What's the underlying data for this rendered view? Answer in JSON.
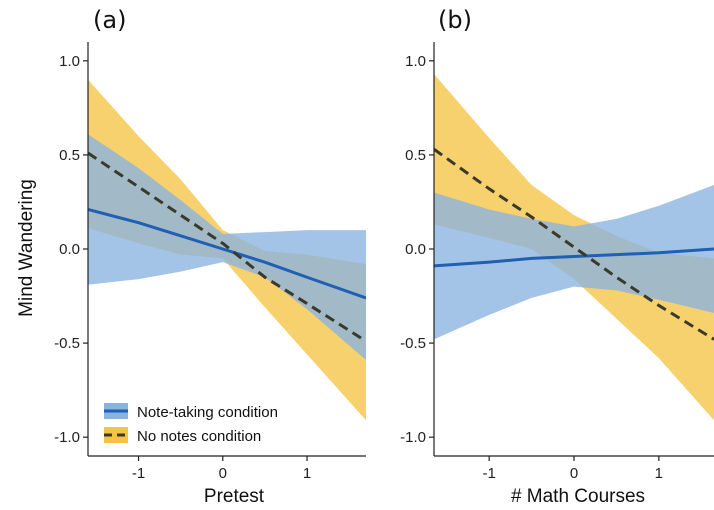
{
  "chart_data": [
    {
      "type": "line",
      "panel_label": "(a)",
      "xlabel": "Pretest",
      "ylabel": "Mind Wandering",
      "xlim": [
        -1.6,
        1.7
      ],
      "ylim": [
        -1.1,
        1.1
      ],
      "x_ticks": [
        "-1",
        "0",
        "1"
      ],
      "y_ticks": [
        "1.0",
        "0.5",
        "0.0",
        "-0.5",
        "-1.0"
      ],
      "grid": false,
      "legend_position": "bottom-left",
      "series": [
        {
          "name": "Note-taking condition",
          "color": "#1f5fb4",
          "band_color": "#8ab4e0",
          "line_style": "solid",
          "x": [
            -1.6,
            -1.0,
            -0.5,
            0.0,
            0.5,
            1.0,
            1.7
          ],
          "values": [
            0.21,
            0.14,
            0.07,
            0.0,
            -0.07,
            -0.15,
            -0.26
          ],
          "lower": [
            -0.19,
            -0.16,
            -0.12,
            -0.07,
            -0.15,
            -0.32,
            -0.59
          ],
          "upper": [
            0.61,
            0.43,
            0.26,
            0.08,
            0.09,
            0.1,
            0.1
          ]
        },
        {
          "name": "No notes condition",
          "color": "#3a3a2a",
          "band_color": "#f5c444",
          "line_style": "dashed",
          "x": [
            -1.6,
            -1.0,
            -0.5,
            0.0,
            0.5,
            1.0,
            1.7
          ],
          "values": [
            0.51,
            0.33,
            0.18,
            0.03,
            -0.15,
            -0.29,
            -0.49
          ],
          "lower": [
            0.11,
            0.03,
            -0.03,
            -0.05,
            -0.31,
            -0.56,
            -0.91
          ],
          "upper": [
            0.9,
            0.6,
            0.37,
            0.1,
            -0.01,
            -0.03,
            -0.08
          ]
        }
      ]
    },
    {
      "type": "line",
      "panel_label": "(b)",
      "xlabel": "# Math Courses",
      "ylabel": "",
      "xlim": [
        -1.65,
        1.65
      ],
      "ylim": [
        -1.1,
        1.1
      ],
      "x_ticks": [
        "-1",
        "0",
        "1"
      ],
      "y_ticks": [
        "1.0",
        "0.5",
        "0.0",
        "-0.5",
        "-1.0"
      ],
      "grid": false,
      "series": [
        {
          "name": "Note-taking condition",
          "color": "#1f5fb4",
          "band_color": "#8ab4e0",
          "line_style": "solid",
          "x": [
            -1.65,
            -1.0,
            -0.5,
            0.0,
            0.5,
            1.0,
            1.65
          ],
          "values": [
            -0.09,
            -0.07,
            -0.05,
            -0.04,
            -0.03,
            -0.02,
            0.0
          ],
          "lower": [
            -0.48,
            -0.35,
            -0.26,
            -0.2,
            -0.22,
            -0.27,
            -0.34
          ],
          "upper": [
            0.3,
            0.21,
            0.16,
            0.12,
            0.16,
            0.23,
            0.34
          ]
        },
        {
          "name": "No notes condition",
          "color": "#3a3a2a",
          "band_color": "#f5c444",
          "line_style": "dashed",
          "x": [
            -1.65,
            -1.0,
            -0.5,
            0.0,
            0.5,
            1.0,
            1.65
          ],
          "values": [
            0.53,
            0.32,
            0.17,
            0.01,
            -0.15,
            -0.3,
            -0.48
          ],
          "lower": [
            0.13,
            0.06,
            0.0,
            -0.16,
            -0.37,
            -0.58,
            -0.91
          ],
          "upper": [
            0.93,
            0.59,
            0.34,
            0.18,
            0.07,
            -0.02,
            -0.05
          ]
        }
      ]
    }
  ]
}
